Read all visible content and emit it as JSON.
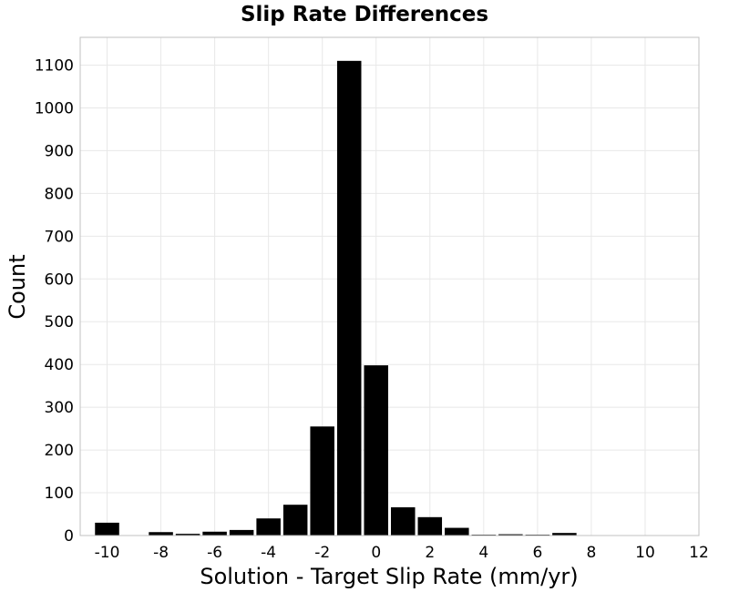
{
  "chart_data": {
    "type": "bar",
    "title": "Slip Rate Differences",
    "xlabel": "Solution - Target Slip Rate (mm/yr)",
    "ylabel": "Count",
    "bin_width": 1,
    "x": [
      -10,
      -8,
      -7,
      -6,
      -5,
      -4,
      -3,
      -2,
      -1,
      0,
      1,
      2,
      3,
      4,
      5,
      6,
      7
    ],
    "values": [
      30,
      8,
      4,
      9,
      13,
      40,
      72,
      255,
      1110,
      398,
      66,
      43,
      18,
      2,
      3,
      2,
      6
    ],
    "xlim": [
      -11,
      12
    ],
    "ylim": [
      0,
      1165
    ],
    "xticks": [
      -10,
      -8,
      -6,
      -4,
      -2,
      0,
      2,
      4,
      6,
      8,
      10,
      12
    ],
    "xtick_labels": [
      "-10",
      "-8",
      "-6",
      "-4",
      "-2",
      "0",
      "2",
      "4",
      "6",
      "8",
      "10",
      "12"
    ],
    "yticks": [
      0,
      100,
      200,
      300,
      400,
      500,
      600,
      700,
      800,
      900,
      1000,
      1100
    ],
    "ytick_labels": [
      "0",
      "100",
      "200",
      "300",
      "400",
      "500",
      "600",
      "700",
      "800",
      "900",
      "1000",
      "1100"
    ],
    "grid": true,
    "colors": {
      "bar_fill": "#000000",
      "bar_edge": "#ffffff",
      "grid": "#e8e8e8",
      "frame": "#c0c0c0",
      "background": "#ffffff"
    }
  }
}
